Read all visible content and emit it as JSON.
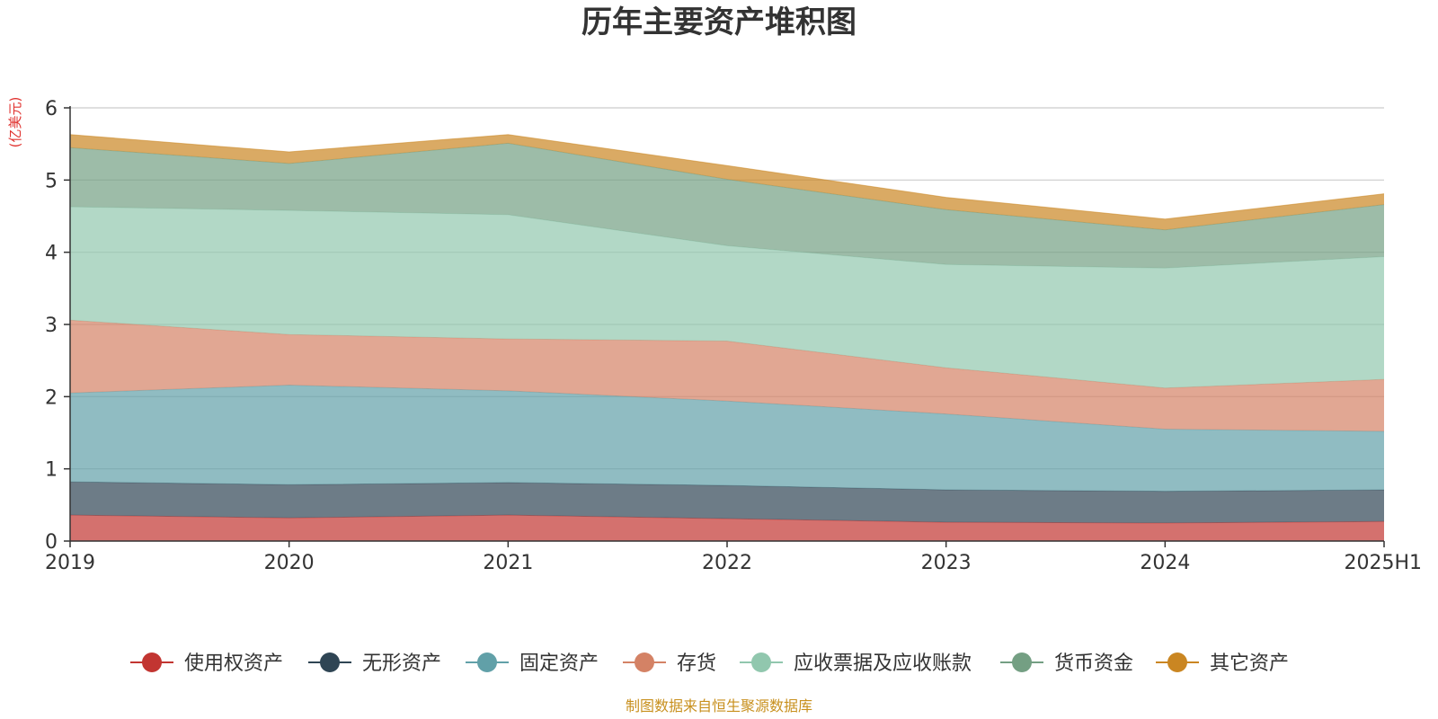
{
  "chart_data": {
    "type": "area",
    "stacked": true,
    "title": "历年主要资产堆积图",
    "ylabel": "(亿美元)",
    "xlabel": "",
    "categories": [
      "2019",
      "2020",
      "2021",
      "2022",
      "2023",
      "2024",
      "2025H1"
    ],
    "ylim": [
      0,
      6
    ],
    "yticks": [
      0,
      1,
      2,
      3,
      4,
      5,
      6
    ],
    "grid": true,
    "legend_position": "bottom",
    "series": [
      {
        "name": "使用权资产",
        "color": "#c23531",
        "values": [
          0.36,
          0.32,
          0.36,
          0.31,
          0.26,
          0.25,
          0.27
        ]
      },
      {
        "name": "无形资产",
        "color": "#2f4554",
        "values": [
          0.46,
          0.46,
          0.45,
          0.46,
          0.45,
          0.44,
          0.44
        ]
      },
      {
        "name": "固定资产",
        "color": "#61a0a8",
        "values": [
          1.23,
          1.38,
          1.27,
          1.17,
          1.05,
          0.86,
          0.81
        ]
      },
      {
        "name": "存货",
        "color": "#d48265",
        "values": [
          1.01,
          0.7,
          0.72,
          0.83,
          0.64,
          0.57,
          0.72
        ]
      },
      {
        "name": "应收票据及应收账款",
        "color": "#91c7ae",
        "values": [
          1.57,
          1.72,
          1.72,
          1.32,
          1.43,
          1.66,
          1.7
        ]
      },
      {
        "name": "货币资金",
        "color": "#749f83",
        "values": [
          0.82,
          0.65,
          0.99,
          0.92,
          0.76,
          0.53,
          0.72
        ]
      },
      {
        "name": "其它资产",
        "color": "#ca8622",
        "values": [
          0.18,
          0.16,
          0.12,
          0.19,
          0.17,
          0.15,
          0.15
        ]
      }
    ],
    "source_note": "制图数据来自恒生聚源数据库"
  }
}
